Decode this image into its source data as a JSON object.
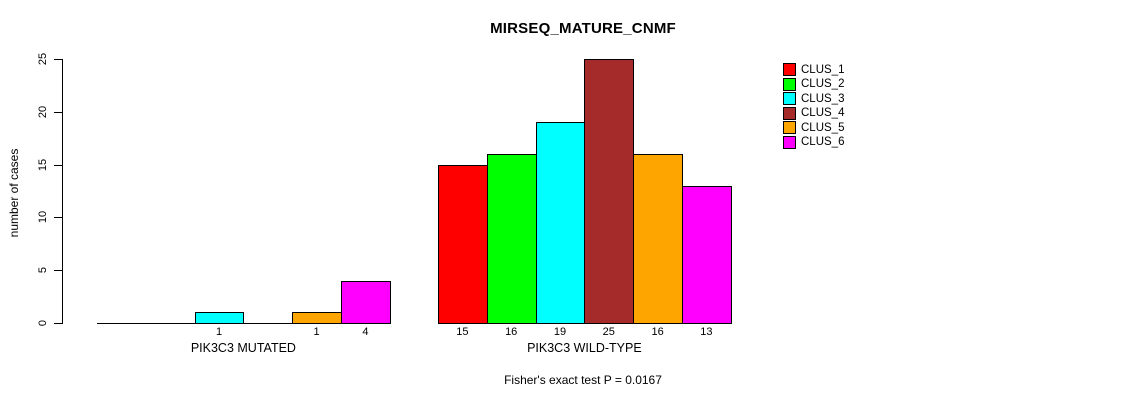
{
  "chart_data": {
    "type": "bar",
    "title": "MIRSEQ_MATURE_CNMF",
    "ylabel": "number of cases",
    "footer": "Fisher's exact test P = 0.0167",
    "ylim": [
      0,
      25
    ],
    "yticks": [
      0,
      5,
      10,
      15,
      20,
      25
    ],
    "grid": false,
    "legend_position": "right",
    "series": [
      {
        "name": "CLUS_1",
        "color": "#FF0000"
      },
      {
        "name": "CLUS_2",
        "color": "#00FF00"
      },
      {
        "name": "CLUS_3",
        "color": "#00FFFF"
      },
      {
        "name": "CLUS_4",
        "color": "#A52A2A"
      },
      {
        "name": "CLUS_5",
        "color": "#FFA500"
      },
      {
        "name": "CLUS_6",
        "color": "#FF00FF"
      }
    ],
    "groups": [
      {
        "label": "PIK3C3 MUTATED",
        "values": [
          0,
          0,
          1,
          0,
          1,
          4
        ],
        "value_labels": [
          "",
          "",
          "1",
          "",
          "1",
          "4"
        ]
      },
      {
        "label": "PIK3C3 WILD-TYPE",
        "values": [
          15,
          16,
          19,
          25,
          16,
          13
        ],
        "value_labels": [
          "15",
          "16",
          "19",
          "25",
          "16",
          "13"
        ]
      }
    ]
  }
}
